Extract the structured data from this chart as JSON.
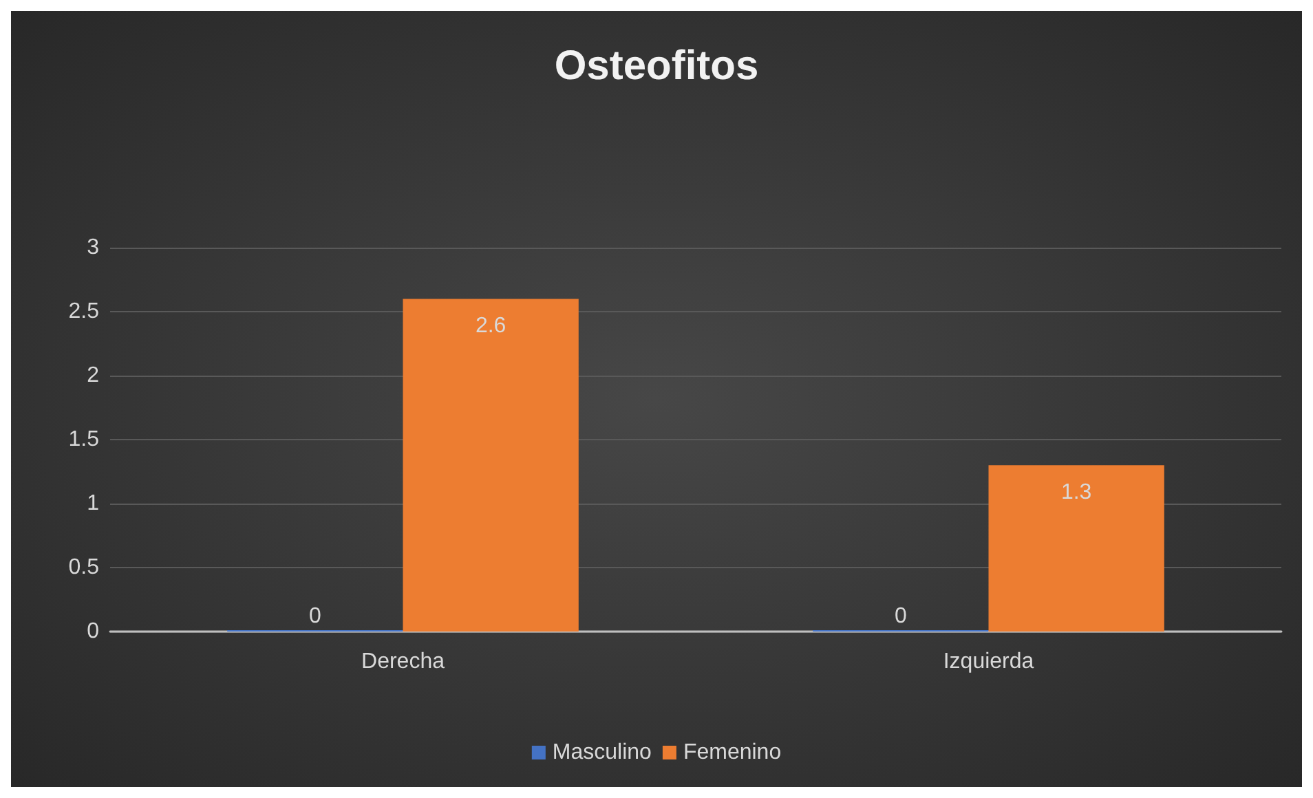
{
  "chart_data": {
    "type": "bar",
    "title": "Osteofitos",
    "categories": [
      "Derecha",
      "Izquierda"
    ],
    "series": [
      {
        "name": "Masculino",
        "color": "#4472c4",
        "values": [
          0,
          0
        ]
      },
      {
        "name": "Femenino",
        "color": "#ed7d31",
        "values": [
          2.6,
          1.3
        ]
      }
    ],
    "ylim": [
      0,
      3
    ],
    "yticks": [
      0,
      0.5,
      1,
      1.5,
      2,
      2.5,
      3
    ],
    "grid": "y",
    "legend": "bottom",
    "data_labels": true
  }
}
